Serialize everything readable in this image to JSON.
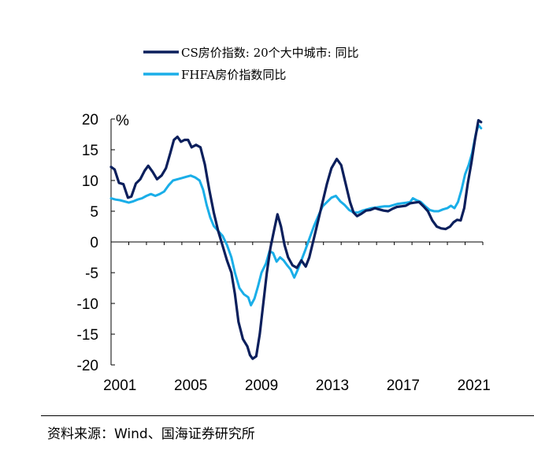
{
  "source_note": "资料来源：Wind、国海证券研究所",
  "chart_data": {
    "type": "line",
    "unit_label": "%",
    "legend": [
      {
        "name": "CS房价指数: 20个大中城市: 同比",
        "color": "#0b1f5c"
      },
      {
        "name": "FHFA房价指数同比",
        "color": "#1aaee8"
      }
    ],
    "xlim": [
      2001,
      2022
    ],
    "ylim": [
      -20,
      20
    ],
    "x_ticks": [
      2001,
      2005,
      2009,
      2013,
      2017,
      2021
    ],
    "y_ticks": [
      20,
      15,
      10,
      5,
      0,
      -5,
      -10,
      -15,
      -20
    ],
    "grid": false,
    "legend_position": "top",
    "series": [
      {
        "name": "CS房价指数: 20个大中城市: 同比",
        "color": "#0b1f5c",
        "points": [
          [
            2001.0,
            12.2
          ],
          [
            2001.2,
            11.8
          ],
          [
            2001.45,
            9.6
          ],
          [
            2001.7,
            9.4
          ],
          [
            2001.95,
            7.2
          ],
          [
            2002.15,
            7.4
          ],
          [
            2002.4,
            9.5
          ],
          [
            2002.65,
            10.2
          ],
          [
            2002.9,
            11.6
          ],
          [
            2003.1,
            12.4
          ],
          [
            2003.35,
            11.4
          ],
          [
            2003.6,
            10.2
          ],
          [
            2003.85,
            10.8
          ],
          [
            2004.1,
            12.0
          ],
          [
            2004.35,
            14.5
          ],
          [
            2004.55,
            16.6
          ],
          [
            2004.75,
            17.1
          ],
          [
            2004.95,
            16.3
          ],
          [
            2005.15,
            16.6
          ],
          [
            2005.35,
            16.6
          ],
          [
            2005.55,
            15.4
          ],
          [
            2005.8,
            15.8
          ],
          [
            2006.05,
            15.4
          ],
          [
            2006.3,
            12.6
          ],
          [
            2006.55,
            8.5
          ],
          [
            2006.8,
            4.8
          ],
          [
            2007.05,
            1.8
          ],
          [
            2007.3,
            -0.6
          ],
          [
            2007.55,
            -3.0
          ],
          [
            2007.8,
            -5.0
          ],
          [
            2008.0,
            -8.5
          ],
          [
            2008.2,
            -13.0
          ],
          [
            2008.45,
            -15.8
          ],
          [
            2008.7,
            -17.0
          ],
          [
            2008.85,
            -18.4
          ],
          [
            2009.0,
            -19.0
          ],
          [
            2009.2,
            -18.6
          ],
          [
            2009.4,
            -15.0
          ],
          [
            2009.6,
            -10.0
          ],
          [
            2009.8,
            -5.0
          ],
          [
            2010.0,
            -1.0
          ],
          [
            2010.2,
            1.8
          ],
          [
            2010.4,
            4.5
          ],
          [
            2010.6,
            2.5
          ],
          [
            2010.8,
            -0.5
          ],
          [
            2011.0,
            -2.5
          ],
          [
            2011.25,
            -3.8
          ],
          [
            2011.5,
            -4.2
          ],
          [
            2011.75,
            -3.0
          ],
          [
            2012.0,
            -4.0
          ],
          [
            2012.2,
            -2.5
          ],
          [
            2012.45,
            0.5
          ],
          [
            2012.7,
            3.5
          ],
          [
            2012.95,
            6.5
          ],
          [
            2013.2,
            9.5
          ],
          [
            2013.45,
            12.0
          ],
          [
            2013.75,
            13.5
          ],
          [
            2014.0,
            12.5
          ],
          [
            2014.25,
            9.5
          ],
          [
            2014.5,
            6.5
          ],
          [
            2014.7,
            4.8
          ],
          [
            2014.9,
            4.2
          ],
          [
            2015.15,
            4.6
          ],
          [
            2015.4,
            5.1
          ],
          [
            2015.65,
            5.2
          ],
          [
            2015.9,
            5.5
          ],
          [
            2016.15,
            5.3
          ],
          [
            2016.4,
            5.1
          ],
          [
            2016.65,
            5.0
          ],
          [
            2016.9,
            5.4
          ],
          [
            2017.15,
            5.7
          ],
          [
            2017.4,
            5.8
          ],
          [
            2017.65,
            5.9
          ],
          [
            2017.9,
            6.3
          ],
          [
            2018.15,
            6.4
          ],
          [
            2018.4,
            6.5
          ],
          [
            2018.65,
            5.8
          ],
          [
            2018.9,
            5.0
          ],
          [
            2019.15,
            3.5
          ],
          [
            2019.4,
            2.5
          ],
          [
            2019.65,
            2.2
          ],
          [
            2019.9,
            2.1
          ],
          [
            2020.15,
            2.5
          ],
          [
            2020.35,
            3.2
          ],
          [
            2020.55,
            3.6
          ],
          [
            2020.75,
            3.5
          ],
          [
            2020.95,
            5.5
          ],
          [
            2021.15,
            9.5
          ],
          [
            2021.35,
            12.8
          ],
          [
            2021.55,
            16.5
          ],
          [
            2021.75,
            19.8
          ],
          [
            2021.9,
            19.5
          ]
        ]
      },
      {
        "name": "FHFA房价指数同比",
        "color": "#1aaee8",
        "points": [
          [
            2001.0,
            7.1
          ],
          [
            2001.25,
            6.9
          ],
          [
            2001.5,
            6.8
          ],
          [
            2001.75,
            6.6
          ],
          [
            2002.0,
            6.4
          ],
          [
            2002.25,
            6.6
          ],
          [
            2002.5,
            6.9
          ],
          [
            2002.75,
            7.1
          ],
          [
            2003.0,
            7.5
          ],
          [
            2003.25,
            7.8
          ],
          [
            2003.5,
            7.5
          ],
          [
            2003.75,
            7.8
          ],
          [
            2004.0,
            8.2
          ],
          [
            2004.25,
            9.2
          ],
          [
            2004.5,
            10.0
          ],
          [
            2004.75,
            10.2
          ],
          [
            2005.0,
            10.4
          ],
          [
            2005.25,
            10.6
          ],
          [
            2005.5,
            10.8
          ],
          [
            2005.75,
            10.5
          ],
          [
            2006.0,
            10.0
          ],
          [
            2006.2,
            8.5
          ],
          [
            2006.4,
            6.0
          ],
          [
            2006.6,
            4.0
          ],
          [
            2006.8,
            2.6
          ],
          [
            2007.05,
            1.8
          ],
          [
            2007.3,
            1.0
          ],
          [
            2007.55,
            -0.5
          ],
          [
            2007.8,
            -2.5
          ],
          [
            2008.0,
            -5.0
          ],
          [
            2008.25,
            -7.5
          ],
          [
            2008.5,
            -8.5
          ],
          [
            2008.75,
            -9.0
          ],
          [
            2008.9,
            -10.3
          ],
          [
            2009.1,
            -9.2
          ],
          [
            2009.3,
            -7.2
          ],
          [
            2009.5,
            -5.0
          ],
          [
            2009.75,
            -3.5
          ],
          [
            2009.95,
            -1.5
          ],
          [
            2010.15,
            -1.8
          ],
          [
            2010.35,
            -3.2
          ],
          [
            2010.55,
            -2.5
          ],
          [
            2010.75,
            -3.0
          ],
          [
            2010.95,
            -3.8
          ],
          [
            2011.15,
            -4.5
          ],
          [
            2011.35,
            -5.8
          ],
          [
            2011.55,
            -4.5
          ],
          [
            2011.75,
            -3.0
          ],
          [
            2011.95,
            -1.5
          ],
          [
            2012.2,
            0.5
          ],
          [
            2012.45,
            2.5
          ],
          [
            2012.7,
            4.2
          ],
          [
            2012.95,
            5.8
          ],
          [
            2013.2,
            6.5
          ],
          [
            2013.45,
            7.2
          ],
          [
            2013.7,
            7.5
          ],
          [
            2013.95,
            6.6
          ],
          [
            2014.2,
            6.0
          ],
          [
            2014.45,
            5.2
          ],
          [
            2014.7,
            4.8
          ],
          [
            2014.95,
            4.8
          ],
          [
            2015.2,
            5.1
          ],
          [
            2015.45,
            5.3
          ],
          [
            2015.7,
            5.5
          ],
          [
            2015.95,
            5.6
          ],
          [
            2016.2,
            5.7
          ],
          [
            2016.45,
            5.8
          ],
          [
            2016.7,
            5.8
          ],
          [
            2016.95,
            6.0
          ],
          [
            2017.2,
            6.2
          ],
          [
            2017.45,
            6.3
          ],
          [
            2017.7,
            6.4
          ],
          [
            2017.9,
            6.5
          ],
          [
            2018.05,
            7.1
          ],
          [
            2018.25,
            6.8
          ],
          [
            2018.5,
            6.5
          ],
          [
            2018.75,
            5.8
          ],
          [
            2019.0,
            5.2
          ],
          [
            2019.25,
            5.0
          ],
          [
            2019.5,
            5.0
          ],
          [
            2019.75,
            5.3
          ],
          [
            2020.0,
            5.5
          ],
          [
            2020.2,
            5.9
          ],
          [
            2020.4,
            5.5
          ],
          [
            2020.6,
            6.5
          ],
          [
            2020.8,
            8.5
          ],
          [
            2021.0,
            11.0
          ],
          [
            2021.2,
            12.5
          ],
          [
            2021.4,
            14.5
          ],
          [
            2021.6,
            17.5
          ],
          [
            2021.75,
            19.0
          ],
          [
            2021.9,
            18.5
          ]
        ]
      }
    ]
  }
}
